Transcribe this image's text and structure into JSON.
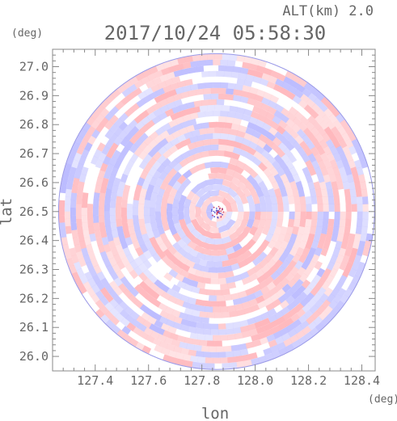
{
  "header": {
    "altitude_label": "ALT(km) 2.0",
    "timestamp": "2017/10/24 05:58:30"
  },
  "chart_data": {
    "type": "heatmap",
    "title": "2017/10/24 05:58:30",
    "subtitle": "ALT(km) 2.0",
    "xlabel": "lon",
    "ylabel": "lat",
    "x_unit": "(deg)",
    "y_unit": "(deg)",
    "xlim": [
      127.24,
      128.45
    ],
    "ylim": [
      25.95,
      27.06
    ],
    "x_ticks": [
      "127.4",
      "127.6",
      "127.8",
      "128.0",
      "128.2",
      "128.4"
    ],
    "y_ticks": [
      "26.0",
      "26.1",
      "26.2",
      "26.3",
      "26.4",
      "26.5",
      "26.6",
      "26.7",
      "26.8",
      "26.9",
      "27.0"
    ],
    "scan_center": {
      "lon": 127.855,
      "lat": 26.5
    },
    "scan_radius_deg_lat": 0.545,
    "grid": false,
    "colors": {
      "positive": "#ffb3b8",
      "negative": "#b8b8ff",
      "axis": "#666666",
      "background": "#ffffff"
    }
  }
}
